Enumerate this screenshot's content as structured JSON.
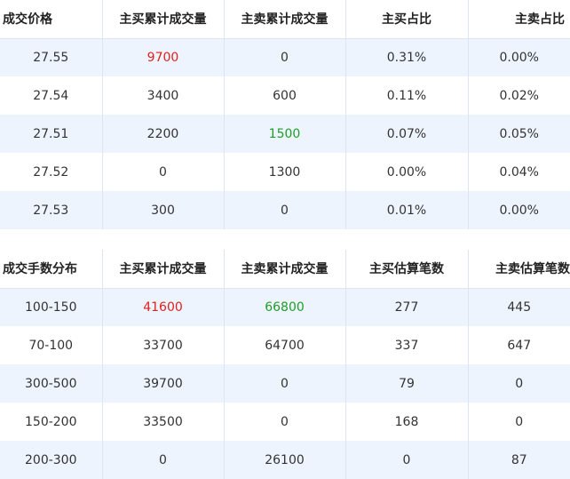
{
  "table1": {
    "headers": [
      "成交价格",
      "主买累计成交量",
      "主卖累计成交量",
      "主买占比",
      "主卖占比"
    ],
    "rows": [
      [
        "27.55",
        "9700",
        "0",
        "0.31%",
        "0.00%"
      ],
      [
        "27.54",
        "3400",
        "600",
        "0.11%",
        "0.02%"
      ],
      [
        "27.51",
        "2200",
        "1500",
        "0.07%",
        "0.05%"
      ],
      [
        "27.52",
        "0",
        "1300",
        "0.00%",
        "0.04%"
      ],
      [
        "27.53",
        "300",
        "0",
        "0.01%",
        "0.00%"
      ]
    ]
  },
  "table2": {
    "headers": [
      "成交手数分布",
      "主买累计成交量",
      "主卖累计成交量",
      "主买估算笔数",
      "主卖估算笔数"
    ],
    "rows": [
      [
        "100-150",
        "41600",
        "66800",
        "277",
        "445"
      ],
      [
        "70-100",
        "33700",
        "64700",
        "337",
        "647"
      ],
      [
        "300-500",
        "39700",
        "0",
        "79",
        "0"
      ],
      [
        "150-200",
        "33500",
        "0",
        "168",
        "0"
      ],
      [
        "200-300",
        "0",
        "26100",
        "0",
        "87"
      ]
    ]
  },
  "colors": {
    "highlight_red": "#e02020",
    "highlight_green": "#1f9d2a",
    "stripe": "#eef4fd",
    "border": "#dde5f2"
  }
}
